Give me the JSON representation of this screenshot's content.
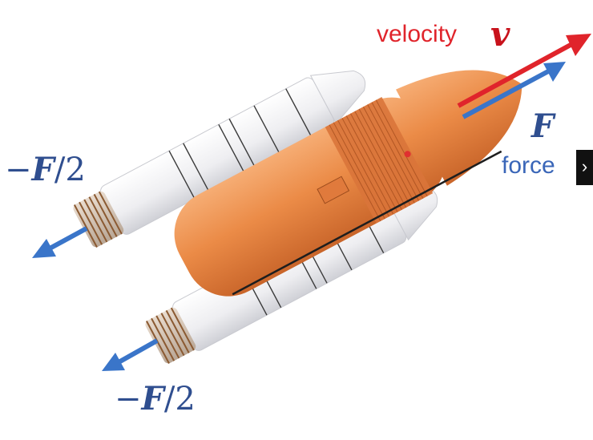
{
  "labels": {
    "velocity": "velocity",
    "velocity_symbol": "v",
    "force_symbol": "F",
    "force": "force",
    "reaction_left_minus": "−",
    "reaction_left_symbol": "F",
    "reaction_left_rest": "/2",
    "reaction_bottom_minus": "−",
    "reaction_bottom_symbol": "F",
    "reaction_bottom_rest": "/2"
  },
  "controls": {
    "next_icon": "›"
  },
  "colors": {
    "velocity": "#e0242b",
    "force": "#3a75c9",
    "tank": "#e8823c",
    "booster": "#f4f4f6"
  },
  "icons": [
    "chevron-right-icon"
  ]
}
